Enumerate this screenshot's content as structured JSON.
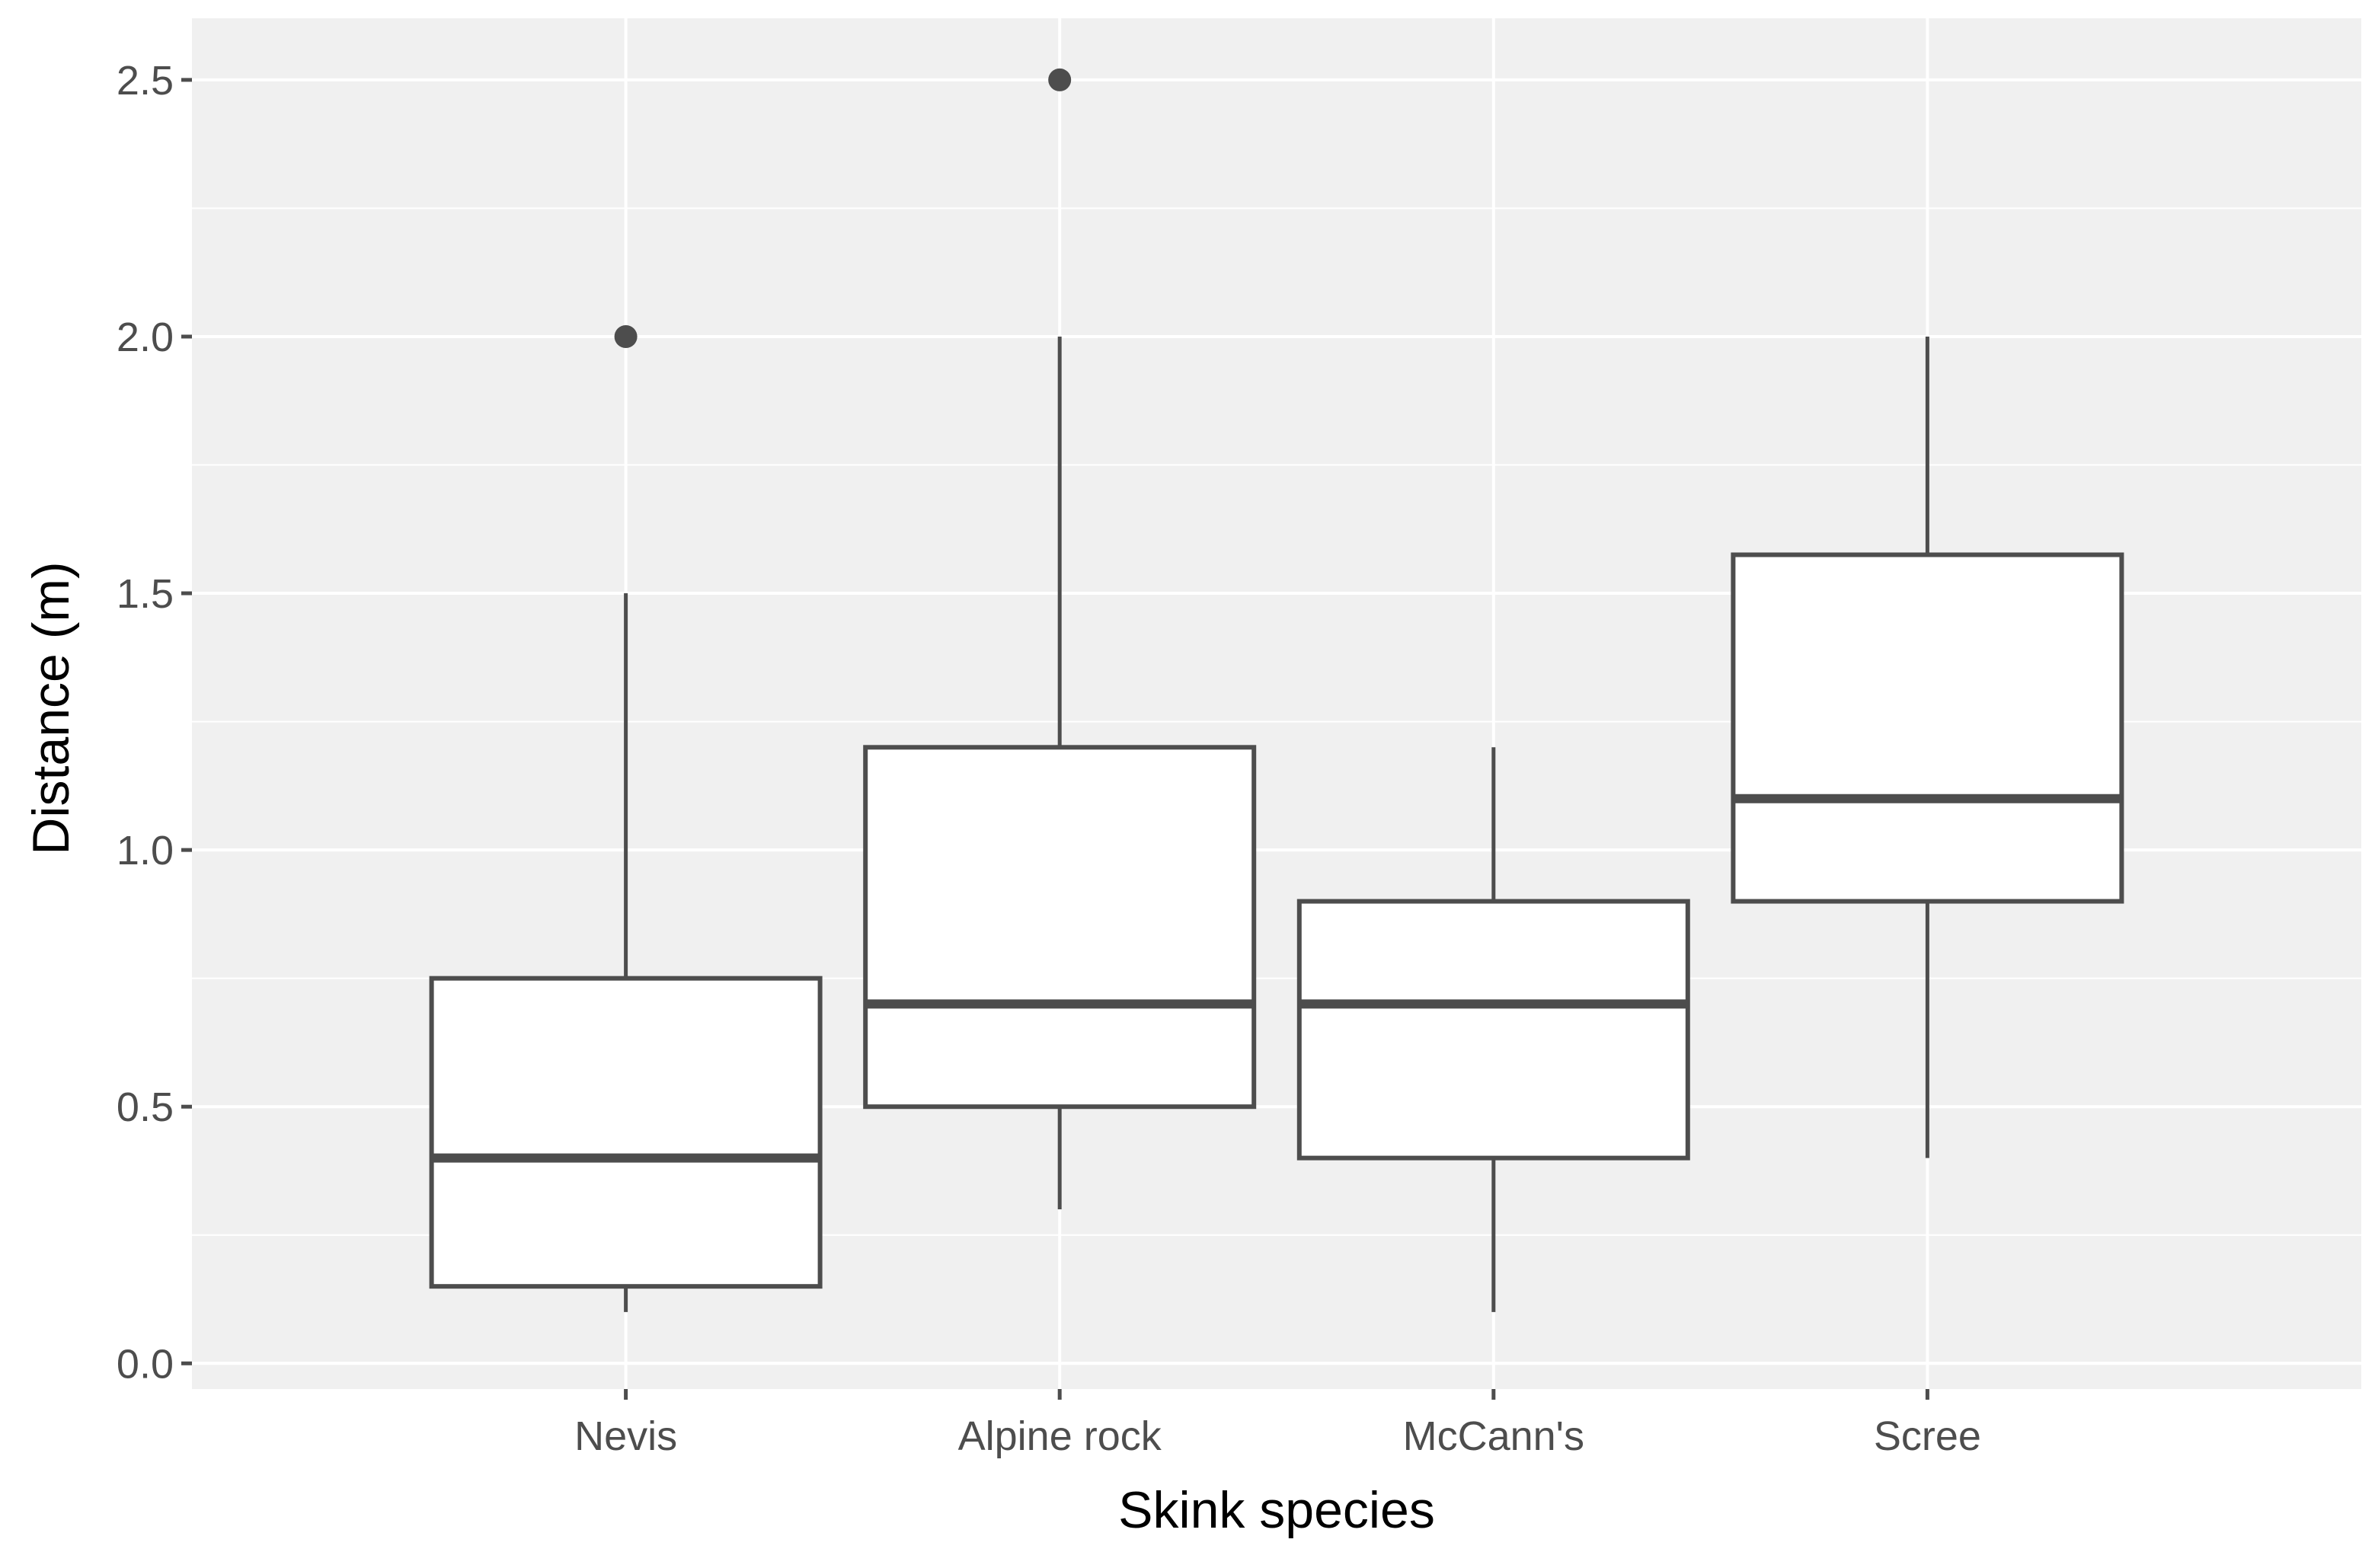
{
  "chart_data": {
    "type": "boxplot",
    "title": "",
    "xlabel": "Skink species",
    "ylabel": "Distance (m)",
    "ylim": [
      -0.05,
      2.62
    ],
    "yticks": [
      0.0,
      0.5,
      1.0,
      1.5,
      2.0,
      2.5
    ],
    "ytick_labels": [
      "0.0",
      "0.5",
      "1.0",
      "1.5",
      "2.0",
      "2.5"
    ],
    "grid": true,
    "categories": [
      "Nevis",
      "Alpine rock",
      "McCann's",
      "Scree"
    ],
    "boxes": [
      {
        "name": "Nevis",
        "whisker_low": 0.1,
        "q1": 0.15,
        "median": 0.4,
        "q3": 0.75,
        "whisker_high": 1.5,
        "outliers": [
          2.0
        ]
      },
      {
        "name": "Alpine rock",
        "whisker_low": 0.3,
        "q1": 0.5,
        "median": 0.7,
        "q3": 1.2,
        "whisker_high": 2.0,
        "outliers": [
          2.5
        ]
      },
      {
        "name": "McCann's",
        "whisker_low": 0.1,
        "q1": 0.4,
        "median": 0.7,
        "q3": 0.9,
        "whisker_high": 1.2,
        "outliers": []
      },
      {
        "name": "Scree",
        "whisker_low": 0.4,
        "q1": 0.9,
        "median": 1.1,
        "q3": 1.575,
        "whisker_high": 2.0,
        "outliers": []
      }
    ],
    "colors": {
      "panel": "#f0f0f0",
      "grid": "#ffffff",
      "box_fill": "#ffffff",
      "box_line": "#4d4d4d",
      "tick": "#4d4d4d"
    }
  }
}
